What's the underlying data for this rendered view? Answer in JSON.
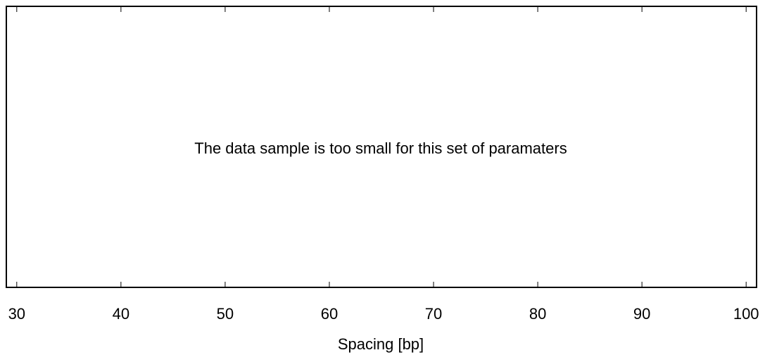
{
  "chart_data": {
    "type": "line",
    "title": "",
    "message": "The data sample is too small for this set of paramaters",
    "xlabel": "Spacing [bp]",
    "ylabel": "",
    "xlim": [
      29,
      101
    ],
    "xticks": [
      30,
      40,
      50,
      60,
      70,
      80,
      90,
      100
    ],
    "xtick_labels": [
      "30",
      "40",
      "50",
      "60",
      "70",
      "80",
      "90",
      "100"
    ],
    "series": [],
    "grid": false,
    "legend": "none"
  }
}
